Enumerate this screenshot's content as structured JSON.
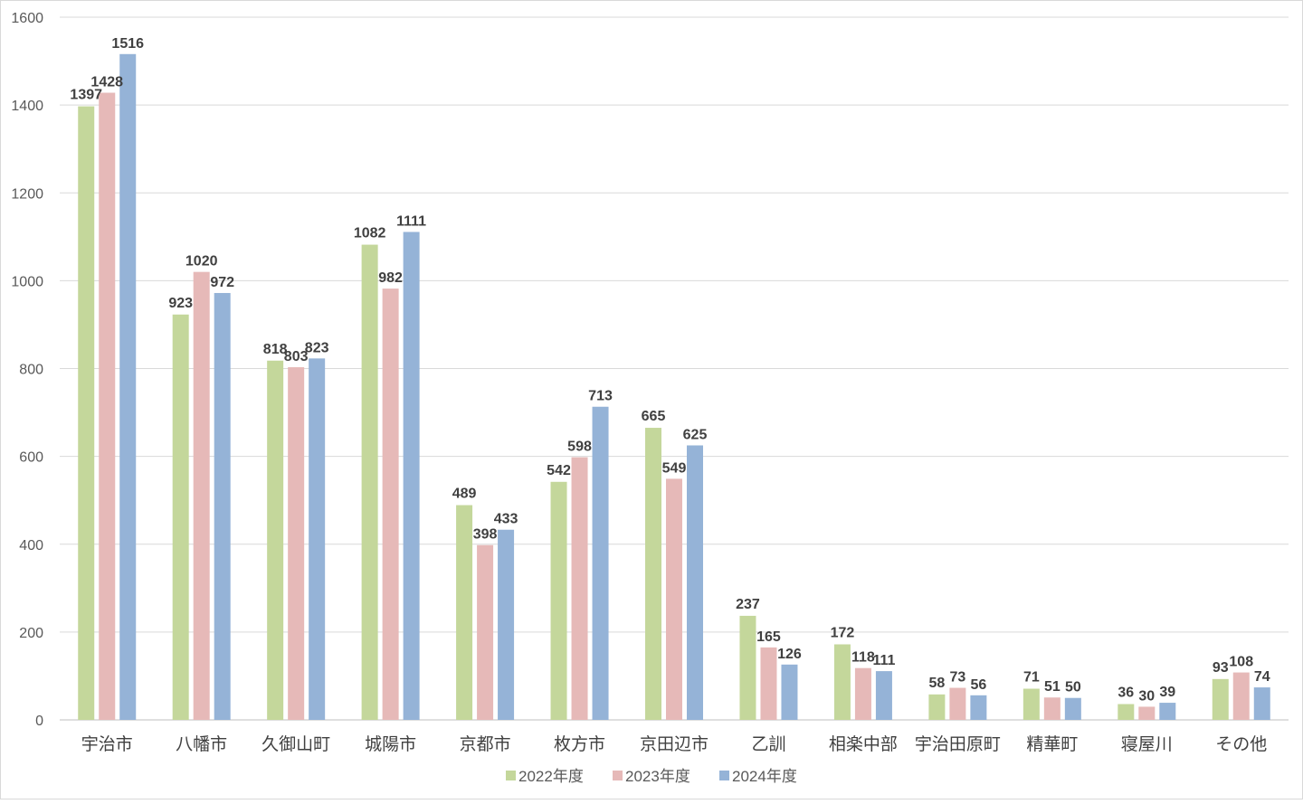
{
  "chart_data": {
    "type": "bar",
    "categories": [
      "宇治市",
      "八幡市",
      "久御山町",
      "城陽市",
      "京都市",
      "枚方市",
      "京田辺市",
      "乙訓",
      "相楽中部",
      "宇治田原町",
      "精華町",
      "寝屋川",
      "その他"
    ],
    "series": [
      {
        "name": "2022年度",
        "color": "#c4d79b",
        "values": [
          1397,
          923,
          818,
          1082,
          489,
          542,
          665,
          237,
          172,
          58,
          71,
          36,
          93
        ]
      },
      {
        "name": "2023年度",
        "color": "#e6b9b8",
        "values": [
          1428,
          1020,
          803,
          982,
          398,
          598,
          549,
          165,
          118,
          73,
          51,
          30,
          108
        ]
      },
      {
        "name": "2024年度",
        "color": "#95b3d7",
        "values": [
          1516,
          972,
          823,
          1111,
          433,
          713,
          625,
          126,
          111,
          56,
          50,
          39,
          74
        ]
      }
    ],
    "ylim": [
      0,
      1600
    ],
    "yticks": [
      0,
      200,
      400,
      600,
      800,
      1000,
      1200,
      1400,
      1600
    ],
    "grid": true,
    "legend_position": "bottom"
  }
}
